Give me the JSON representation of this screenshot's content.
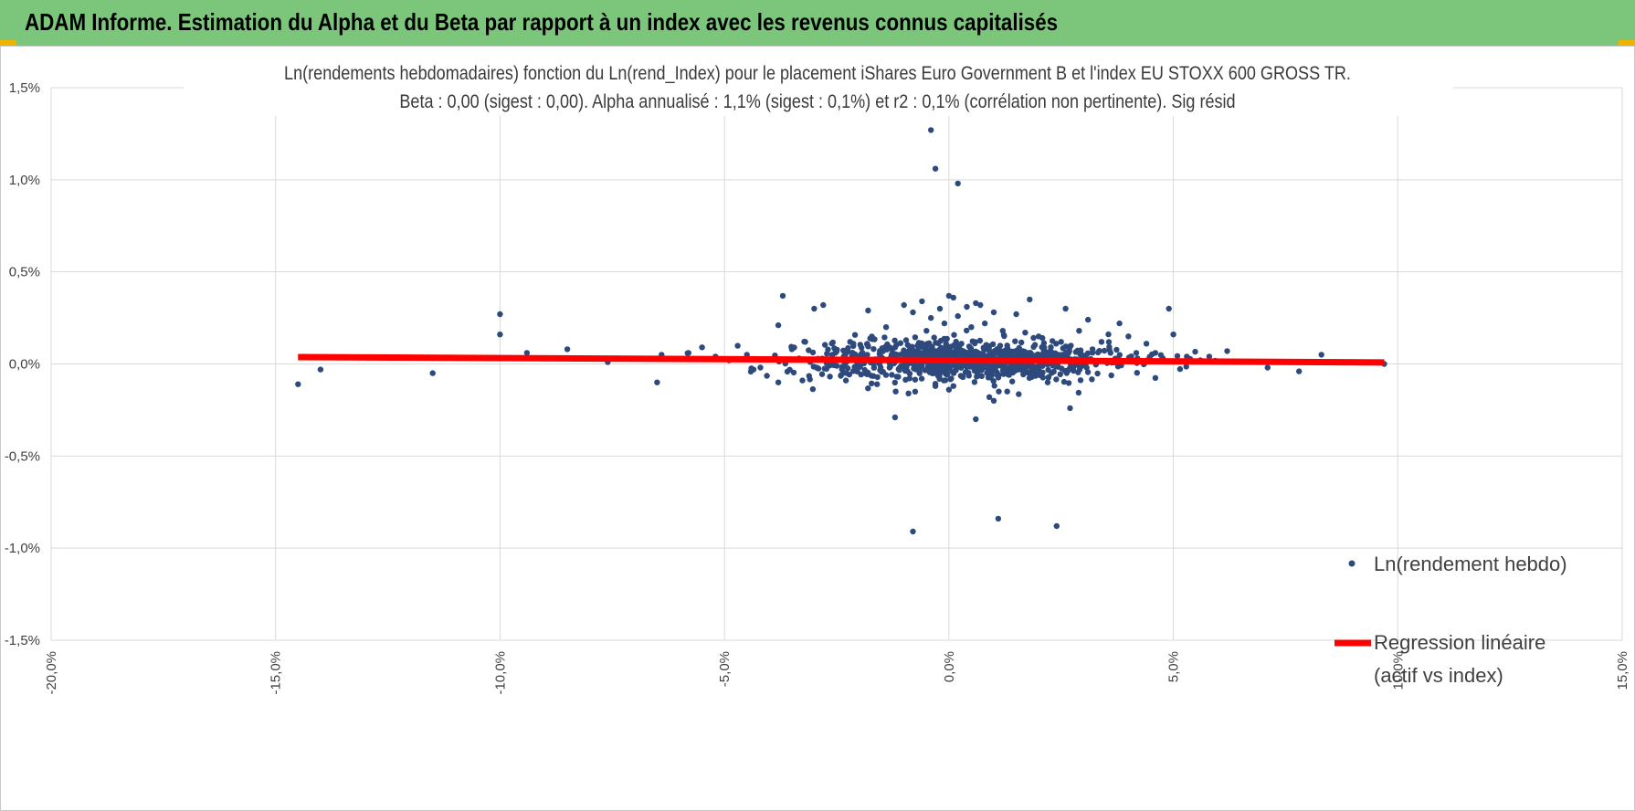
{
  "header": {
    "title": "ADAM Informe. Estimation du Alpha et du Beta par rapport à un index avec les revenus connus capitalisés",
    "background": "#7cc67b",
    "corner_color": "#f0b400"
  },
  "chart_data": {
    "type": "scatter",
    "title": "Ln(rendements hebdomadaires) fonction du Ln(rend_Index) pour le placement iShares Euro Government B et l'index EU STOXX 600 GROSS TR.",
    "subtitle": "Beta : 0,00 (sigest : 0,00).  Alpha annualisé : 1,1% (sigest : 0,1%) et r2 : 0,1% (corrélation non pertinente). Sig résid",
    "xlabel": "",
    "ylabel": "",
    "xlim": [
      -20,
      15
    ],
    "ylim": [
      -1.5,
      1.5
    ],
    "x_ticks": [
      -20,
      -15,
      -10,
      -5,
      0,
      5,
      10,
      15
    ],
    "x_tick_labels": [
      "-20,0%",
      "-15,0%",
      "-10,0%",
      "-5,0%",
      "0,0%",
      "5,0%",
      "10,0%",
      "15,0%"
    ],
    "y_ticks": [
      1.5,
      1.0,
      0.5,
      0.0,
      -0.5,
      -1.0,
      -1.5
    ],
    "y_tick_labels": [
      "1,5%",
      "1,0%",
      "0,5%",
      "0,0%",
      "-0,5%",
      "-1,0%",
      "-1,5%"
    ],
    "grid": true,
    "legend_position": "right",
    "series": [
      {
        "name": "Ln(rendement hebdo)",
        "kind": "points",
        "color": "#2e4a7d",
        "points": [
          [
            -14.5,
            -0.11
          ],
          [
            -14.0,
            -0.03
          ],
          [
            -11.5,
            -0.05
          ],
          [
            -10.0,
            0.27
          ],
          [
            -10.0,
            0.16
          ],
          [
            -9.4,
            0.06
          ],
          [
            -8.5,
            0.08
          ],
          [
            -7.6,
            0.01
          ],
          [
            -7.4,
            0.03
          ],
          [
            -6.5,
            -0.1
          ],
          [
            -6.4,
            0.05
          ],
          [
            -5.8,
            0.06
          ],
          [
            -5.5,
            0.09
          ],
          [
            -5.2,
            0.04
          ],
          [
            -4.9,
            0.02
          ],
          [
            -4.5,
            0.05
          ],
          [
            -4.2,
            -0.02
          ],
          [
            -3.8,
            0.21
          ],
          [
            -3.7,
            0.37
          ],
          [
            -3.8,
            -0.1
          ],
          [
            -3.5,
            0.08
          ],
          [
            -3.2,
            0.12
          ],
          [
            -3.0,
            0.3
          ],
          [
            -2.8,
            0.32
          ],
          [
            -2.6,
            0.05
          ],
          [
            -2.4,
            -0.06
          ],
          [
            -2.2,
            0.12
          ],
          [
            -1.8,
            0.29
          ],
          [
            -1.6,
            -0.11
          ],
          [
            -1.4,
            0.2
          ],
          [
            -1.2,
            -0.29
          ],
          [
            -1.0,
            0.32
          ],
          [
            -0.9,
            -0.16
          ],
          [
            -0.8,
            0.28
          ],
          [
            -0.8,
            -0.91
          ],
          [
            -0.6,
            0.34
          ],
          [
            -0.5,
            0.18
          ],
          [
            -0.4,
            0.25
          ],
          [
            -0.3,
            -0.12
          ],
          [
            -0.4,
            1.27
          ],
          [
            -0.3,
            1.06
          ],
          [
            -0.2,
            0.3
          ],
          [
            -0.1,
            0.22
          ],
          [
            0.0,
            0.37
          ],
          [
            0.0,
            -0.14
          ],
          [
            0.1,
            0.36
          ],
          [
            0.1,
            -0.12
          ],
          [
            0.2,
            0.26
          ],
          [
            0.2,
            0.98
          ],
          [
            0.3,
            -0.07
          ],
          [
            0.4,
            0.31
          ],
          [
            0.5,
            0.2
          ],
          [
            0.6,
            0.33
          ],
          [
            0.6,
            -0.3
          ],
          [
            0.7,
            0.32
          ],
          [
            0.8,
            0.22
          ],
          [
            0.9,
            -0.18
          ],
          [
            1.0,
            -0.2
          ],
          [
            1.0,
            0.28
          ],
          [
            1.1,
            -0.84
          ],
          [
            1.2,
            0.18
          ],
          [
            1.3,
            -0.15
          ],
          [
            1.5,
            0.27
          ],
          [
            1.6,
            0.06
          ],
          [
            1.7,
            0.17
          ],
          [
            1.8,
            0.35
          ],
          [
            2.0,
            0.15
          ],
          [
            2.2,
            -0.1
          ],
          [
            2.4,
            -0.88
          ],
          [
            2.5,
            0.12
          ],
          [
            2.6,
            0.3
          ],
          [
            2.7,
            -0.24
          ],
          [
            2.9,
            0.18
          ],
          [
            3.1,
            0.24
          ],
          [
            3.2,
            0.08
          ],
          [
            3.4,
            0.12
          ],
          [
            3.6,
            0.06
          ],
          [
            3.8,
            0.22
          ],
          [
            4.0,
            0.15
          ],
          [
            4.2,
            0.03
          ],
          [
            4.4,
            0.11
          ],
          [
            4.6,
            0.06
          ],
          [
            4.9,
            0.3
          ],
          [
            5.0,
            0.16
          ],
          [
            5.3,
            0.04
          ],
          [
            5.6,
            0.02
          ],
          [
            5.8,
            0.04
          ],
          [
            6.2,
            0.07
          ],
          [
            7.1,
            -0.02
          ],
          [
            7.8,
            -0.04
          ],
          [
            8.3,
            0.05
          ],
          [
            9.7,
            0.0
          ],
          [
            -2.0,
            0.02
          ],
          [
            -1.5,
            0.03
          ],
          [
            -1.0,
            0.05
          ],
          [
            -0.5,
            0.04
          ],
          [
            0.5,
            0.03
          ],
          [
            1.0,
            0.05
          ],
          [
            1.5,
            0.02
          ],
          [
            2.0,
            0.04
          ],
          [
            -0.2,
            0.08
          ],
          [
            0.3,
            0.07
          ],
          [
            0.8,
            0.09
          ],
          [
            -0.7,
            0.1
          ],
          [
            1.3,
            0.1
          ],
          [
            -1.3,
            0.01
          ],
          [
            1.8,
            0.0
          ],
          [
            -2.3,
            0.06
          ],
          [
            2.3,
            0.06
          ],
          [
            0.0,
            0.02
          ]
        ],
        "dense_cluster": {
          "x_center": 0.3,
          "x_spread": 3.2,
          "y_center": 0.02,
          "y_spread": 0.055,
          "count": 900
        }
      },
      {
        "name": "Regression linéaire\n(actif vs index)",
        "legend_lines": [
          "Regression linéaire",
          "(actif vs index)"
        ],
        "kind": "line",
        "color": "#ff0000",
        "x": [
          -14.5,
          9.7
        ],
        "y": [
          0.037,
          0.008
        ]
      }
    ]
  }
}
